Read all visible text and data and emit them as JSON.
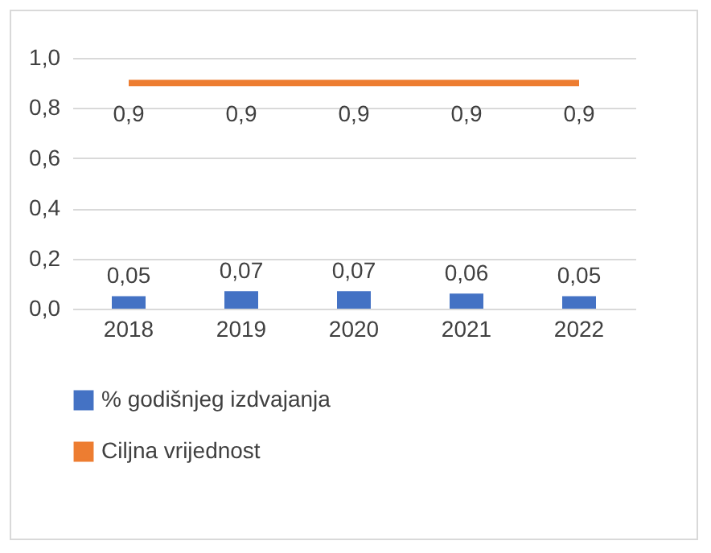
{
  "chart_data": {
    "type": "bar",
    "categories": [
      "2018",
      "2019",
      "2020",
      "2021",
      "2022"
    ],
    "series": [
      {
        "name": "% godišnjeg izdvajanja",
        "color": "#4472c4",
        "values": [
          0.05,
          0.07,
          0.07,
          0.06,
          0.05
        ],
        "value_labels": [
          "0,05",
          "0,07",
          "0,07",
          "0,06",
          "0,05"
        ]
      },
      {
        "name": "Ciljna vrijednost",
        "type": "line",
        "color": "#ed7d31",
        "values": [
          0.9,
          0.9,
          0.9,
          0.9,
          0.9
        ],
        "value_labels": [
          "0,9",
          "0,9",
          "0,9",
          "0,9",
          "0,9"
        ]
      }
    ],
    "ylim": [
      0,
      1
    ],
    "yticks": [
      {
        "value": 0,
        "label": "0,0"
      },
      {
        "value": 0.2,
        "label": "0,2"
      },
      {
        "value": 0.4,
        "label": "0,4"
      },
      {
        "value": 0.6,
        "label": "0,6"
      },
      {
        "value": 0.8,
        "label": "0,8"
      },
      {
        "value": 1,
        "label": "1,0"
      }
    ],
    "grid": "y",
    "legend": "bottom"
  }
}
